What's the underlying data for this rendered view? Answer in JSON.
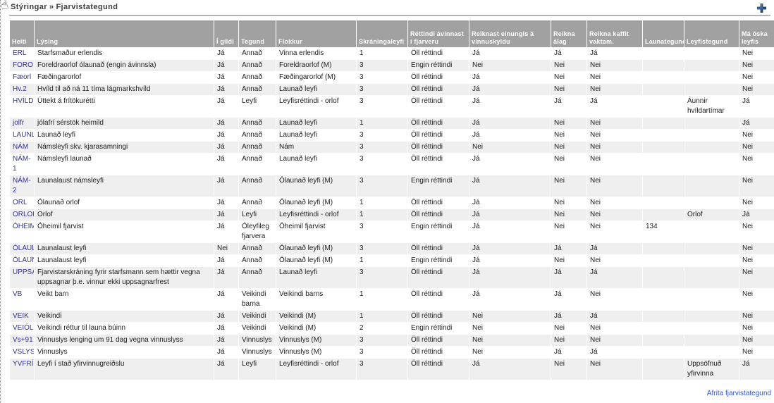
{
  "breadcrumb": {
    "section": "Stýringar",
    "separator": "»",
    "current": "Fjarvistategund"
  },
  "icons": {
    "cursor": "hand-pointer",
    "add": "plus-icon"
  },
  "colors": {
    "header_bg": "#a1a1a1",
    "stripe": "#efefef",
    "link_navy": "#333399",
    "link_blue": "#3355cc",
    "plus_dark": "#0d2f63",
    "plus_light": "#7aa7d9"
  },
  "footer": {
    "copy_link": "Afrita fjarvistategund"
  },
  "table": {
    "columns": [
      {
        "id": "heiti",
        "label": "Heiti"
      },
      {
        "id": "lysing",
        "label": "Lýsing"
      },
      {
        "id": "i-gildi",
        "label": "Í gildi"
      },
      {
        "id": "tegund",
        "label": "Tegund"
      },
      {
        "id": "flokkur",
        "label": "Flokkur"
      },
      {
        "id": "skraningaleyfi",
        "label": "Skráningaleyfi"
      },
      {
        "id": "rettindi-avinnast",
        "label": "Réttindi ávinnast í fjarveru"
      },
      {
        "id": "reiknast-einungis",
        "label": "Reiknast einungis á vinnuskyldu"
      },
      {
        "id": "reikna-alag",
        "label": "Reikna álag"
      },
      {
        "id": "reikna-kaffit",
        "label": "Reikna kaffit vaktam."
      },
      {
        "id": "launategund",
        "label": "Launategund"
      },
      {
        "id": "leyfistegund",
        "label": "Leyfistegund"
      },
      {
        "id": "ma-oska-leyfis",
        "label": "Má óska leyfis"
      }
    ],
    "rows": [
      {
        "cells": [
          "ERL",
          "Starfsmaður erlendis",
          "Já",
          "Annað",
          "Vinna erlendis",
          "1",
          "Öll réttindi",
          "Já",
          "Já",
          "Já",
          "",
          "",
          "Nei"
        ]
      },
      {
        "cells": [
          "FORO",
          "Foreldraorlof ólaunað (engin ávinnsla)",
          "Já",
          "Annað",
          "Foreldraorlof (M)",
          "3",
          "Engin réttindi",
          "Nei",
          "Nei",
          "Nei",
          "",
          "",
          "Nei"
        ]
      },
      {
        "cells": [
          "Fæorl",
          "Fæðingarorlof",
          "Já",
          "Annað",
          "Fæðingarorlof (M)",
          "3",
          "Öll réttindi",
          "Já",
          "Nei",
          "Nei",
          "",
          "",
          "Nei"
        ]
      },
      {
        "cells": [
          "Hv.2",
          "Hvíld til að ná 11 tíma lágmarkshvíld",
          "Já",
          "Annað",
          "Launað leyfi",
          "3",
          "Öll réttindi",
          "Já",
          "Nei",
          "Nei",
          "",
          "",
          "Nei"
        ]
      },
      {
        "cells": [
          "HVÍLD",
          "Úttekt á frítökurétti",
          "Já",
          "Leyfi",
          "Leyfisréttindi - orlof",
          "3",
          "Öll réttindi",
          "Já",
          "Já",
          "Já",
          "",
          "Áunnir hvíldartímar",
          "Já"
        ]
      },
      {
        "cells": [
          "jolfr",
          "jólafrí sérstök heimild",
          "Já",
          "Annað",
          "Launað leyfi",
          "1",
          "Öll réttindi",
          "Já",
          "Nei",
          "Nei",
          "",
          "",
          "Já"
        ]
      },
      {
        "cells": [
          "LAUNL",
          "Launað leyfi",
          "Já",
          "Annað",
          "Launað leyfi",
          "3",
          "Öll réttindi",
          "Já",
          "Nei",
          "Nei",
          "",
          "",
          "Nei"
        ]
      },
      {
        "cells": [
          "NÁM",
          "Námsleyfi skv. kjarasamningi",
          "Já",
          "Annað",
          "Nám",
          "3",
          "Öll réttindi",
          "Nei",
          "Nei",
          "Nei",
          "",
          "",
          "Nei"
        ]
      },
      {
        "cells": [
          "NÁM-1",
          "Námsleyfi launað",
          "Já",
          "Annað",
          "Launað leyfi",
          "3",
          "Öll réttindi",
          "Já",
          "Nei",
          "Nei",
          "",
          "",
          "Nei"
        ]
      },
      {
        "cells": [
          "NÁM-2",
          "Launalaust námsleyfi",
          "Já",
          "Annað",
          "Ólaunað leyfi (M)",
          "3",
          "Engin réttindi",
          "Já",
          "Nei",
          "Nei",
          "",
          "",
          "Nei"
        ]
      },
      {
        "cells": [
          "ORL",
          "Ólaunað orlof",
          "Já",
          "Annað",
          "Ólaunað leyfi (M)",
          "1",
          "Öll réttindi",
          "Já",
          "Nei",
          "Nei",
          "",
          "",
          "Nei"
        ]
      },
      {
        "cells": [
          "ORLOF",
          "Orlof",
          "Já",
          "Leyfi",
          "Leyfisréttindi - orlof",
          "1",
          "Öll réttindi",
          "Já",
          "Nei",
          "Nei",
          "",
          "Orlof",
          "Já"
        ]
      },
      {
        "cells": [
          "ÓHEIM",
          "Óheimil fjarvist",
          "Já",
          "Óleyfileg fjarvera",
          "Óheimil fjarvist",
          "3",
          "Engin réttindi",
          "Já",
          "Nei",
          "Nei",
          "134",
          "",
          "Nei"
        ]
      },
      {
        "cells": [
          "ÓLAUL",
          "Launalaust leyfi",
          "Nei",
          "Annað",
          "Ólaunað leyfi (M)",
          "3",
          "Öll réttindi",
          "Já",
          "Já",
          "Já",
          "",
          "",
          "Nei"
        ]
      },
      {
        "cells": [
          "ÓLAUN",
          "Launalaust leyfi",
          "Já",
          "Annað",
          "Ólaunað leyfi (M)",
          "1",
          "Engin réttindi",
          "Já",
          "Nei",
          "Nei",
          "",
          "",
          "Nei"
        ]
      },
      {
        "cells": [
          "UPPSA",
          "Fjarvistarskráning fyrir starfsmann sem hættir vegna uppsagnar þ.e. vinnur ekki uppsagnarfrest",
          "Já",
          "Annað",
          "Launað leyfi",
          "3",
          "Öll réttindi",
          "Já",
          "Já",
          "Já",
          "",
          "",
          "Nei"
        ]
      },
      {
        "cells": [
          "VB",
          "Veikt barn",
          "Já",
          "Veikindi barna",
          "Veikindi barns",
          "1",
          "Öll réttindi",
          "Já",
          "Já",
          "Nei",
          "",
          "",
          "Nei"
        ]
      },
      {
        "cells": [
          "VEIK",
          "Veikindi",
          "Já",
          "Veikindi",
          "Veikindi (M)",
          "1",
          "Öll réttindi",
          "Nei",
          "Já",
          "Já",
          "",
          "",
          "Nei"
        ]
      },
      {
        "cells": [
          "VEIÓL",
          "Veikindi réttur til launa búinn",
          "Já",
          "Veikindi",
          "Veikindi (M)",
          "2",
          "Engin réttindi",
          "Nei",
          "Nei",
          "Nei",
          "",
          "",
          "Nei"
        ]
      },
      {
        "cells": [
          "Vs+91",
          "Vinnuslys lenging um 91 dag vegna vinnuslyss",
          "Já",
          "Vinnuslys",
          "Vinnuslys (M)",
          "3",
          "Öll réttindi",
          "Nei",
          "Nei",
          "Nei",
          "",
          "",
          "Nei"
        ]
      },
      {
        "cells": [
          "VSLYS",
          "Vinnuslys",
          "Já",
          "Vinnuslys",
          "Vinnuslys (M)",
          "3",
          "Öll réttindi",
          "Nei",
          "Já",
          "Já",
          "",
          "",
          "Nei"
        ]
      },
      {
        "cells": [
          "YVFRÍ",
          "Leyfi í stað yfirvinnugreiðslu",
          "Já",
          "Leyfi",
          "Leyfisréttindi - orlof",
          "3",
          "Öll réttindi",
          "Já",
          "Nei",
          "Nei",
          "",
          "Uppsöfnuð yfirvinna",
          "Já"
        ]
      }
    ]
  }
}
